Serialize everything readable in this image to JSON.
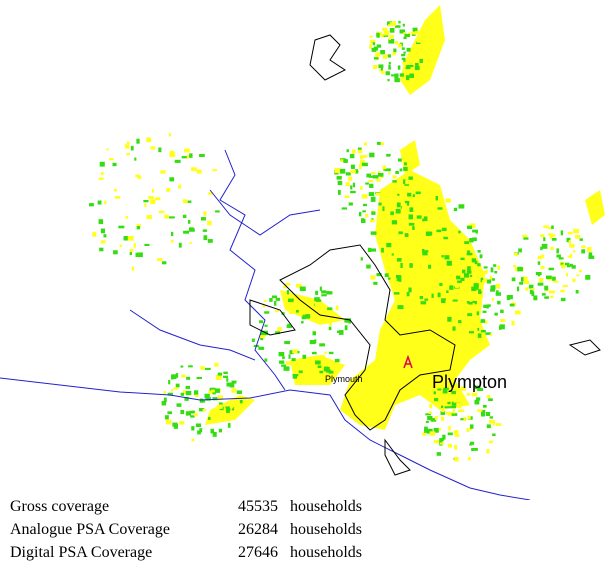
{
  "map": {
    "place_labels": [
      "Plympton",
      "Plymouth"
    ],
    "transmitter_label": "A"
  },
  "coverage": [
    {
      "label": "Gross coverage",
      "value": 45535,
      "unit": "households"
    },
    {
      "label": "Analogue PSA Coverage",
      "value": 26284,
      "unit": "households"
    },
    {
      "label": "Digital PSA Coverage",
      "value": 27646,
      "unit": "households"
    }
  ]
}
